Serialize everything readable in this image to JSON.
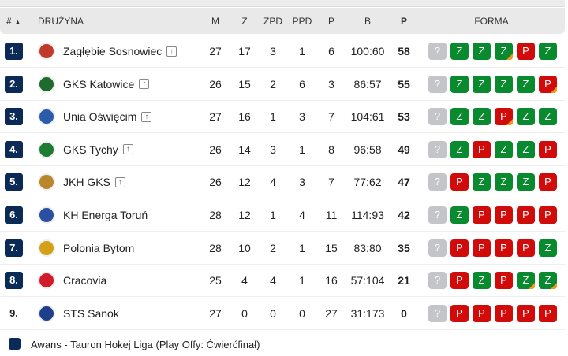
{
  "header": {
    "rank": "#",
    "sort_icon": "▲",
    "team": "DRUŻYNA",
    "m": "M",
    "z": "Z",
    "zpd": "ZPD",
    "ppd": "PPD",
    "p": "P",
    "b": "B",
    "pts": "P",
    "forma": "FORMA"
  },
  "colors": {
    "rank_badge": "#0b2a55",
    "win": "#0a8a2e",
    "loss": "#d10a0a",
    "unknown": "#c3c5c8",
    "overtime_corner": "#f39c12"
  },
  "rows": [
    {
      "rank": "1.",
      "team": "Zagłębie Sosnowiec",
      "promo": true,
      "m": "27",
      "z": "17",
      "zpd": "3",
      "ppd": "1",
      "p": "6",
      "b": "100:60",
      "pts": "58",
      "logo": "#c0392b",
      "form": [
        [
          "?",
          0
        ],
        [
          "Z",
          0
        ],
        [
          "Z",
          0
        ],
        [
          "Z",
          1
        ],
        [
          "P",
          0
        ],
        [
          "Z",
          0
        ]
      ]
    },
    {
      "rank": "2.",
      "team": "GKS Katowice",
      "promo": true,
      "m": "26",
      "z": "15",
      "zpd": "2",
      "ppd": "6",
      "p": "3",
      "b": "86:57",
      "pts": "55",
      "logo": "#1e6b2e",
      "form": [
        [
          "?",
          0
        ],
        [
          "Z",
          0
        ],
        [
          "Z",
          0
        ],
        [
          "Z",
          0
        ],
        [
          "Z",
          0
        ],
        [
          "P",
          1
        ]
      ]
    },
    {
      "rank": "3.",
      "team": "Unia Oświęcim",
      "promo": true,
      "m": "27",
      "z": "16",
      "zpd": "1",
      "ppd": "3",
      "p": "7",
      "b": "104:61",
      "pts": "53",
      "logo": "#2a5caa",
      "form": [
        [
          "?",
          0
        ],
        [
          "Z",
          0
        ],
        [
          "Z",
          0
        ],
        [
          "P",
          1
        ],
        [
          "Z",
          0
        ],
        [
          "Z",
          0
        ]
      ]
    },
    {
      "rank": "4.",
      "team": "GKS Tychy",
      "promo": true,
      "m": "26",
      "z": "14",
      "zpd": "3",
      "ppd": "1",
      "p": "8",
      "b": "96:58",
      "pts": "49",
      "logo": "#1e7b34",
      "form": [
        [
          "?",
          0
        ],
        [
          "Z",
          0
        ],
        [
          "P",
          0
        ],
        [
          "Z",
          0
        ],
        [
          "Z",
          0
        ],
        [
          "P",
          0
        ]
      ]
    },
    {
      "rank": "5.",
      "team": "JKH GKS",
      "promo": true,
      "m": "26",
      "z": "12",
      "zpd": "4",
      "ppd": "3",
      "p": "7",
      "b": "77:62",
      "pts": "47",
      "logo": "#b8862b",
      "form": [
        [
          "?",
          0
        ],
        [
          "P",
          0
        ],
        [
          "Z",
          0
        ],
        [
          "Z",
          0
        ],
        [
          "Z",
          0
        ],
        [
          "P",
          0
        ]
      ]
    },
    {
      "rank": "6.",
      "team": "KH Energa Toruń",
      "promo": false,
      "m": "28",
      "z": "12",
      "zpd": "1",
      "ppd": "4",
      "p": "11",
      "b": "114:93",
      "pts": "42",
      "logo": "#2c4f9e",
      "form": [
        [
          "?",
          0
        ],
        [
          "Z",
          0
        ],
        [
          "P",
          0
        ],
        [
          "P",
          0
        ],
        [
          "P",
          0
        ],
        [
          "P",
          0
        ]
      ]
    },
    {
      "rank": "7.",
      "team": "Polonia Bytom",
      "promo": false,
      "m": "28",
      "z": "10",
      "zpd": "2",
      "ppd": "1",
      "p": "15",
      "b": "83:80",
      "pts": "35",
      "logo": "#d4a017",
      "form": [
        [
          "?",
          0
        ],
        [
          "P",
          0
        ],
        [
          "P",
          0
        ],
        [
          "P",
          0
        ],
        [
          "P",
          0
        ],
        [
          "Z",
          0
        ]
      ]
    },
    {
      "rank": "8.",
      "team": "Cracovia",
      "promo": false,
      "m": "25",
      "z": "4",
      "zpd": "4",
      "ppd": "1",
      "p": "16",
      "b": "57:104",
      "pts": "21",
      "logo": "#d11a2a",
      "form": [
        [
          "?",
          0
        ],
        [
          "P",
          0
        ],
        [
          "Z",
          0
        ],
        [
          "P",
          0
        ],
        [
          "Z",
          1
        ],
        [
          "Z",
          1
        ]
      ]
    },
    {
      "rank": "9.",
      "team": "STS Sanok",
      "promo": false,
      "m": "27",
      "z": "0",
      "zpd": "0",
      "ppd": "0",
      "p": "27",
      "b": "31:173",
      "pts": "0",
      "logo": "#1f3f8a",
      "form": [
        [
          "?",
          0
        ],
        [
          "P",
          0
        ],
        [
          "P",
          0
        ],
        [
          "P",
          0
        ],
        [
          "P",
          0
        ],
        [
          "P",
          0
        ]
      ]
    }
  ],
  "legend": {
    "text": "Awans - Tauron Hokej Liga (Play Offy: Ćwierćfinał)"
  }
}
